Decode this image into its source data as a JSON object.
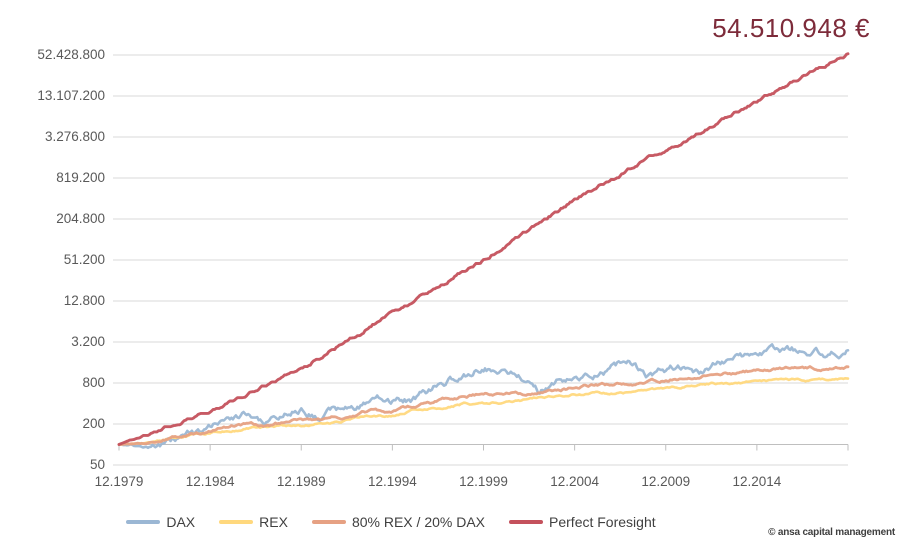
{
  "header": {
    "final_value": "54.510.948 €"
  },
  "y_axis": {
    "tick_labels": [
      "52.428.800",
      "13.107.200",
      "3.276.800",
      "819.200",
      "204.800",
      "51.200",
      "12.800",
      "3.200",
      "800",
      "200",
      "50"
    ]
  },
  "x_axis": {
    "tick_labels": [
      "12.1979",
      "12.1984",
      "12.1989",
      "12.1994",
      "12.1999",
      "12.2004",
      "12.2009",
      "12.2014"
    ]
  },
  "legend": {
    "items": [
      {
        "label": "DAX",
        "color": "#9bb7d4"
      },
      {
        "label": "REX",
        "color": "#ffd87d"
      },
      {
        "label": "80% REX / 20% DAX",
        "color": "#e6a183"
      },
      {
        "label": "Perfect Foresight",
        "color": "#c4515c"
      }
    ]
  },
  "footer": {
    "watermark": "© ansa capital management"
  },
  "chart_data": {
    "type": "line",
    "scale": "log",
    "log_base": 4,
    "ylim": [
      50,
      52428800
    ],
    "grid": "horizontal",
    "legend_position": "bottom",
    "title": "",
    "xlabel": "",
    "ylabel": "",
    "annotation": {
      "text": "54.510.948 €",
      "value": 54510948,
      "color": "#7d2b3a"
    },
    "x_unit": "month (Dec 1979 = index 100)",
    "years": [
      1979,
      1980,
      1981,
      1982,
      1983,
      1984,
      1985,
      1986,
      1987,
      1988,
      1989,
      1990,
      1991,
      1992,
      1993,
      1994,
      1995,
      1996,
      1997,
      1998,
      1999,
      2000,
      2001,
      2002,
      2003,
      2004,
      2005,
      2006,
      2007,
      2008,
      2009,
      2010,
      2011,
      2012,
      2013,
      2014,
      2015,
      2016,
      2017,
      2018,
      2019
    ],
    "series": [
      {
        "name": "DAX",
        "color": "#9bb7d4",
        "values": [
          100,
          97,
          99,
          111,
          156,
          165,
          275,
          288,
          201,
          267,
          360,
          281,
          317,
          311,
          456,
          424,
          453,
          581,
          855,
          1006,
          1400,
          1294,
          1038,
          582,
          798,
          856,
          1088,
          1327,
          1623,
          968,
          1198,
          1391,
          1187,
          1532,
          1922,
          1973,
          2161,
          2310,
          2599,
          2124,
          2666
        ]
      },
      {
        "name": "REX",
        "color": "#ffd87d",
        "values": [
          100,
          103,
          109,
          127,
          137,
          149,
          161,
          172,
          179,
          187,
          191,
          198,
          215,
          240,
          269,
          262,
          309,
          336,
          356,
          398,
          389,
          417,
          441,
          485,
          505,
          542,
          564,
          564,
          582,
          646,
          675,
          702,
          766,
          798,
          796,
          857,
          862,
          893,
          883,
          897,
          908
        ]
      },
      {
        "name": "80% REX / 20% DAX",
        "color": "#e6a183",
        "values": [
          100,
          102,
          107,
          124,
          141,
          153,
          183,
          195,
          190,
          209,
          227,
          224,
          245,
          266,
          318,
          306,
          355,
          399,
          456,
          515,
          547,
          569,
          573,
          569,
          630,
          676,
          734,
          767,
          820,
          826,
          895,
          953,
          994,
          1086,
          1138,
          1215,
          1243,
          1296,
          1317,
          1285,
          1363
        ]
      },
      {
        "name": "Perfect Foresight",
        "color": "#c4515c",
        "values": [
          100,
          125,
          155,
          193,
          241,
          300,
          402,
          539,
          723,
          970,
          1300,
          1892,
          2755,
          4010,
          5838,
          8500,
          12176,
          17443,
          24987,
          35794,
          51200,
          76856,
          115363,
          173164,
          259930,
          390000,
          551200,
          779000,
          1101000,
          1556000,
          2000000,
          2812600,
          3955400,
          5562800,
          7823000,
          11000000,
          15151400,
          20869500,
          28745700,
          39594200,
          54510948
        ]
      }
    ]
  }
}
